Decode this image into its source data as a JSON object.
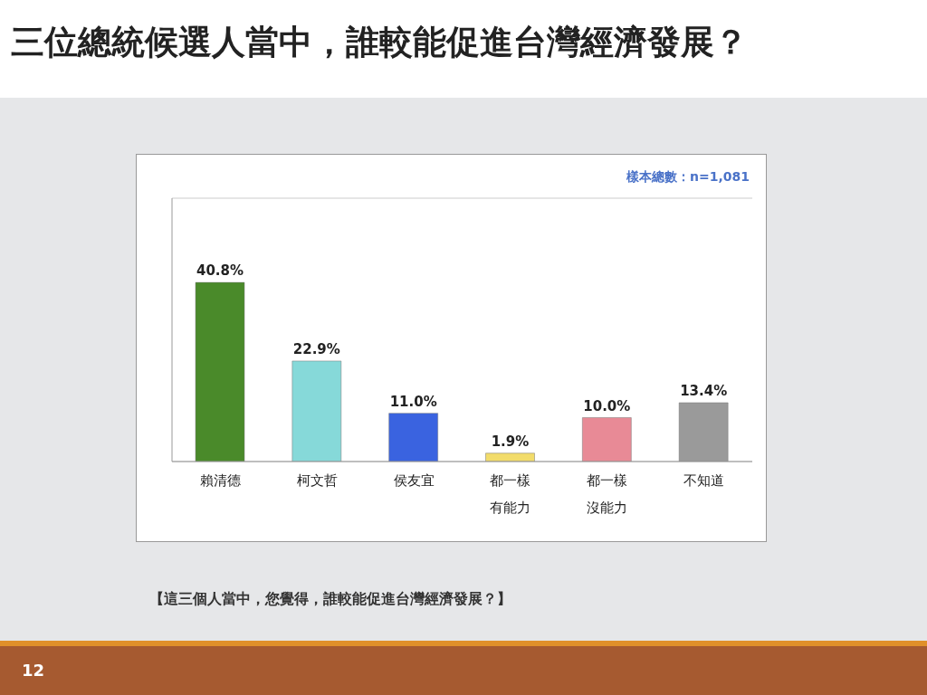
{
  "chart_data": {
    "type": "bar",
    "title": "三位總統候選人當中，誰較能促進台灣經濟發展？",
    "categories": [
      "賴清德",
      "柯文哲",
      "侯友宜",
      "都一樣有能力",
      "都一樣沒能力",
      "不知道"
    ],
    "values": [
      40.8,
      22.9,
      11.0,
      1.9,
      10.0,
      13.4
    ],
    "colors": [
      "#4a8a2a",
      "#86d9d9",
      "#3a63e0",
      "#f2dc6a",
      "#e88a96",
      "#9a9a9a"
    ],
    "value_labels": [
      "40.8%",
      "22.9%",
      "11.0%",
      "1.9%",
      "10.0%",
      "13.4%"
    ],
    "ylim": [
      0,
      60
    ],
    "tick_labels": "x",
    "grid": "y",
    "legend": false,
    "annotations": [
      "樣本總數：n=1,081",
      "【這三個人當中，您覺得，誰較能促進台灣經濟發展？】",
      "12"
    ]
  }
}
